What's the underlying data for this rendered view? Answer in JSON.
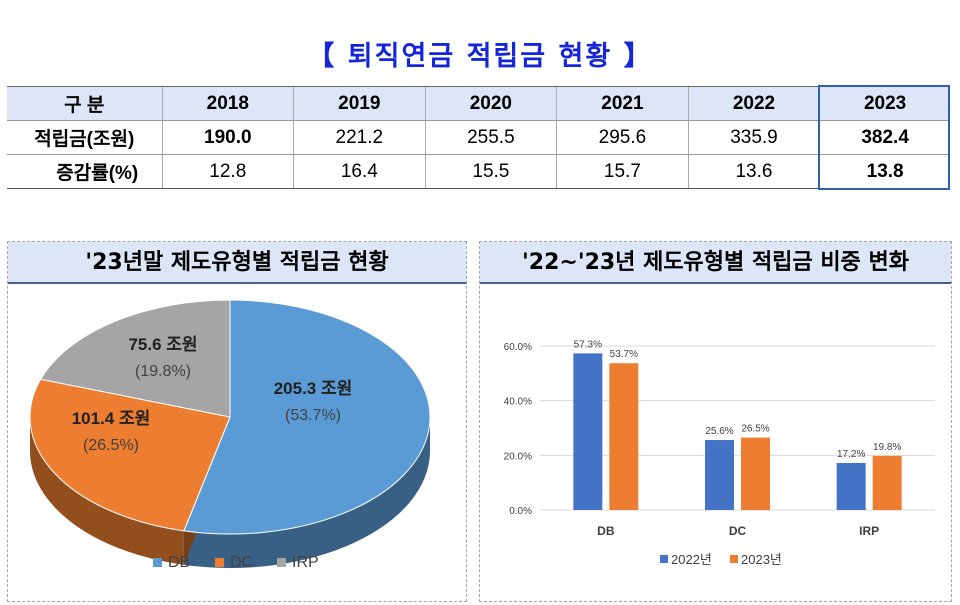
{
  "title": "【 퇴직연금 적립금 현황 】",
  "table": {
    "header_label": "구  분",
    "years": [
      "2018",
      "2019",
      "2020",
      "2021",
      "2022",
      "2023"
    ],
    "rows": [
      {
        "label": "적립금(조원)",
        "values": [
          "190.0",
          "221.2",
          "255.5",
          "295.6",
          "335.9",
          "382.4"
        ]
      },
      {
        "label": "증감률(%)",
        "values": [
          "12.8",
          "16.4",
          "15.5",
          "15.7",
          "13.6",
          "13.8"
        ]
      }
    ]
  },
  "pie_panel": {
    "title": "'23년말 제도유형별 적립금 현황"
  },
  "bar_panel": {
    "title": "'22~'23년 제도유형별 적립금 비중 변화"
  },
  "chart_data": [
    {
      "type": "pie",
      "title": "'23년말 제도유형별 적립금 현황",
      "categories": [
        "DB",
        "DC",
        "IRP"
      ],
      "values": [
        205.3,
        101.4,
        75.6
      ],
      "unit": "조원",
      "percent_labels": [
        "(53.7%)",
        "(26.5%)",
        "(19.8%)"
      ],
      "value_labels": [
        "205.3 조원",
        "101.4 조원",
        "75.6 조원"
      ],
      "colors": [
        "#5b9bd5",
        "#ed7d31",
        "#a5a5a5"
      ],
      "legend_position": "bottom"
    },
    {
      "type": "bar",
      "title": "'22~'23년 제도유형별 적립금 비중 변화",
      "categories": [
        "DB",
        "DC",
        "IRP"
      ],
      "series": [
        {
          "name": "2022년",
          "values": [
            57.3,
            25.6,
            17.2
          ],
          "labels": [
            "57.3%",
            "25.6%",
            "17.2%"
          ],
          "color": "#4472c4"
        },
        {
          "name": "2023년",
          "values": [
            53.7,
            26.5,
            19.8
          ],
          "labels": [
            "53.7%",
            "26.5%",
            "19.8%"
          ],
          "color": "#ed7d31"
        }
      ],
      "y_ticks": [
        "0.0%",
        "20.0%",
        "40.0%",
        "60.0%"
      ],
      "ylim": [
        0,
        60
      ],
      "grid": true,
      "legend_position": "bottom"
    }
  ]
}
